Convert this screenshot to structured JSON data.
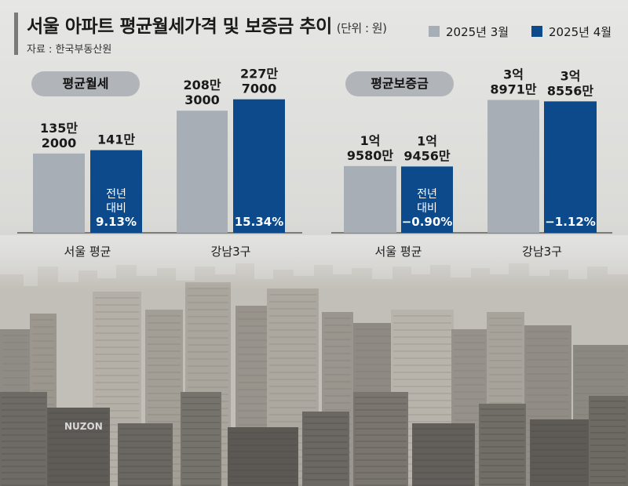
{
  "header": {
    "title": "서울 아파트 평균월세가격 및 보증금 추이",
    "unit": "(단위 : 원)",
    "source": "자료 : 한국부동산원"
  },
  "legend": [
    {
      "label": "2025년 3월",
      "color": "#a8aeb5"
    },
    {
      "label": "2025년 4월",
      "color": "#0d4a8c"
    }
  ],
  "colors": {
    "march": "#a8aeb5",
    "april": "#0d4a8c",
    "axis": "#444444"
  },
  "city_label": "NUZON",
  "chart_data": [
    {
      "type": "bar",
      "title": "평균월세",
      "categories": [
        "서울 평균",
        "강남3구"
      ],
      "series": [
        {
          "name": "2025년 3월",
          "values": [
            1352000,
            2083000
          ],
          "labels": [
            "135만\n2000",
            "208만\n3000"
          ]
        },
        {
          "name": "2025년 4월",
          "values": [
            1410000,
            2277000
          ],
          "labels": [
            "141만",
            "227만\n7000"
          ]
        }
      ],
      "change_labels": [
        "전년\n대비\n9.13%",
        "15.34%"
      ],
      "ylim": [
        0,
        2500000
      ]
    },
    {
      "type": "bar",
      "title": "평균보증금",
      "categories": [
        "서울 평균",
        "강남3구"
      ],
      "series": [
        {
          "name": "2025년 3월",
          "values": [
            195800000,
            389710000
          ],
          "labels": [
            "1억\n9580만",
            "3억\n8971만"
          ]
        },
        {
          "name": "2025년 4월",
          "values": [
            194560000,
            385560000
          ],
          "labels": [
            "1억\n9456만",
            "3억\n8556만"
          ]
        }
      ],
      "change_labels": [
        "전년\n대비\n−0.90%",
        "−1.12%"
      ],
      "ylim": [
        0,
        430000000
      ]
    }
  ]
}
